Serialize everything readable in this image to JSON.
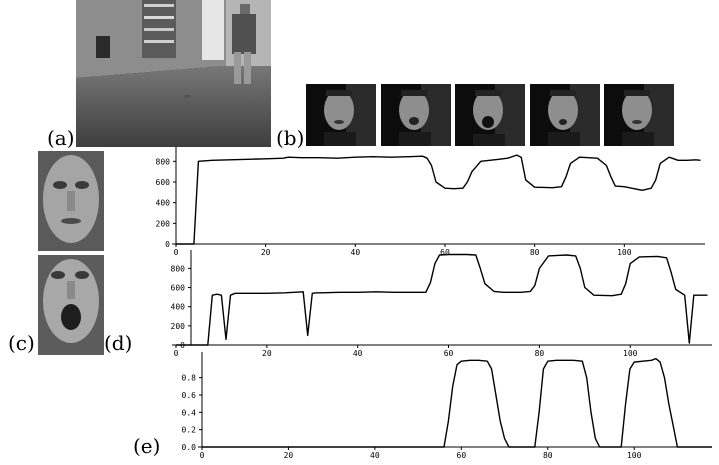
{
  "panels": {
    "a": "(a)",
    "b": "(b)",
    "c": "(c)",
    "d": "(d)",
    "e": "(e)"
  },
  "colors": {
    "line": "#000000",
    "axis": "#000000",
    "room_dark": "#3c3c3c",
    "room_floor": "#6a6a6a",
    "face_bg": "#0c0c0c",
    "face_skin": "#8c8c8c"
  },
  "chart_data": [
    {
      "type": "line",
      "xlim": [
        0,
        118
      ],
      "ylim": [
        0,
        900
      ],
      "xticks": [
        0,
        20,
        40,
        60,
        80,
        100
      ],
      "yticks": [
        0,
        200,
        400,
        600,
        800
      ],
      "x_tick_labels": [
        "0",
        "20",
        "40",
        "60",
        "80",
        "100"
      ],
      "y_tick_labels": [
        "0",
        "200",
        "400",
        "600",
        "800"
      ],
      "grid": false,
      "series": [
        {
          "x": [
            0,
            4,
            5,
            8,
            12,
            16,
            20,
            24,
            25,
            28,
            32,
            36,
            40,
            44,
            48,
            52,
            55,
            56,
            57,
            58,
            60,
            62,
            64,
            65,
            66,
            68,
            72,
            74,
            76,
            77,
            78,
            80,
            84,
            86,
            87,
            88,
            90,
            94,
            96,
            97,
            98,
            100,
            104,
            106,
            107,
            108,
            110,
            112,
            114,
            116,
            117
          ],
          "y": [
            0,
            0,
            800,
            810,
            815,
            820,
            825,
            830,
            840,
            835,
            835,
            830,
            840,
            845,
            840,
            845,
            850,
            830,
            760,
            600,
            540,
            535,
            540,
            600,
            700,
            800,
            820,
            830,
            860,
            840,
            620,
            550,
            545,
            555,
            650,
            780,
            840,
            830,
            760,
            650,
            560,
            555,
            520,
            540,
            620,
            780,
            840,
            810,
            810,
            815,
            810
          ]
        }
      ]
    },
    {
      "type": "line",
      "xlim": [
        0,
        118
      ],
      "ylim": [
        0,
        950
      ],
      "xticks": [
        0,
        20,
        40,
        60,
        80,
        100
      ],
      "yticks": [
        0,
        200,
        400,
        600,
        800
      ],
      "x_tick_labels": [
        "0",
        "20",
        "40",
        "60",
        "80",
        "100"
      ],
      "y_tick_labels": [
        "0",
        "200",
        "400",
        "600",
        "800"
      ],
      "grid": false,
      "series": [
        {
          "x": [
            0,
            7,
            8,
            9,
            10,
            11,
            12,
            13,
            16,
            20,
            24,
            28,
            29,
            30,
            31,
            32,
            36,
            40,
            44,
            48,
            52,
            55,
            56,
            57,
            58,
            60,
            64,
            66,
            67,
            68,
            70,
            72,
            76,
            78,
            79,
            80,
            82,
            84,
            86,
            88,
            89,
            90,
            92,
            96,
            98,
            99,
            100,
            102,
            106,
            108,
            109,
            110,
            112,
            113,
            114,
            115,
            117
          ],
          "y": [
            0,
            0,
            520,
            530,
            520,
            60,
            520,
            540,
            540,
            540,
            545,
            555,
            100,
            540,
            545,
            545,
            550,
            550,
            555,
            550,
            550,
            550,
            650,
            850,
            940,
            945,
            945,
            940,
            800,
            640,
            560,
            550,
            550,
            560,
            620,
            800,
            930,
            935,
            940,
            930,
            800,
            600,
            520,
            515,
            530,
            640,
            850,
            920,
            925,
            910,
            760,
            580,
            520,
            20,
            520,
            520,
            520
          ]
        }
      ]
    },
    {
      "type": "line",
      "xlim": [
        0,
        118
      ],
      "ylim": [
        0,
        1.05
      ],
      "xticks": [
        0,
        20,
        40,
        60,
        80,
        100
      ],
      "yticks": [
        0,
        0.2,
        0.4,
        0.6,
        0.8
      ],
      "x_tick_labels": [
        "0",
        "20",
        "40",
        "60",
        "80",
        "100"
      ],
      "y_tick_labels": [
        "0.0",
        "0.2",
        "0.4",
        "0.6",
        "0.8"
      ],
      "grid": false,
      "series": [
        {
          "x": [
            0,
            56,
            57,
            58,
            59,
            60,
            62,
            64,
            66,
            67,
            68,
            69,
            70,
            71,
            72,
            76,
            77,
            78,
            79,
            80,
            82,
            86,
            88,
            89,
            90,
            91,
            92,
            96,
            97,
            98,
            99,
            100,
            102,
            104,
            105,
            106,
            107,
            108,
            109,
            110,
            118
          ],
          "y": [
            0,
            0,
            0.3,
            0.7,
            0.95,
            0.99,
            1.0,
            1.0,
            0.99,
            0.9,
            0.6,
            0.3,
            0.1,
            0.0,
            0.0,
            0.0,
            0.0,
            0.4,
            0.9,
            0.99,
            1.0,
            1.0,
            0.99,
            0.8,
            0.4,
            0.1,
            0.0,
            0.0,
            0.0,
            0.5,
            0.9,
            0.98,
            0.99,
            1.0,
            1.02,
            0.98,
            0.8,
            0.5,
            0.25,
            0.0,
            0.0
          ]
        }
      ]
    }
  ]
}
